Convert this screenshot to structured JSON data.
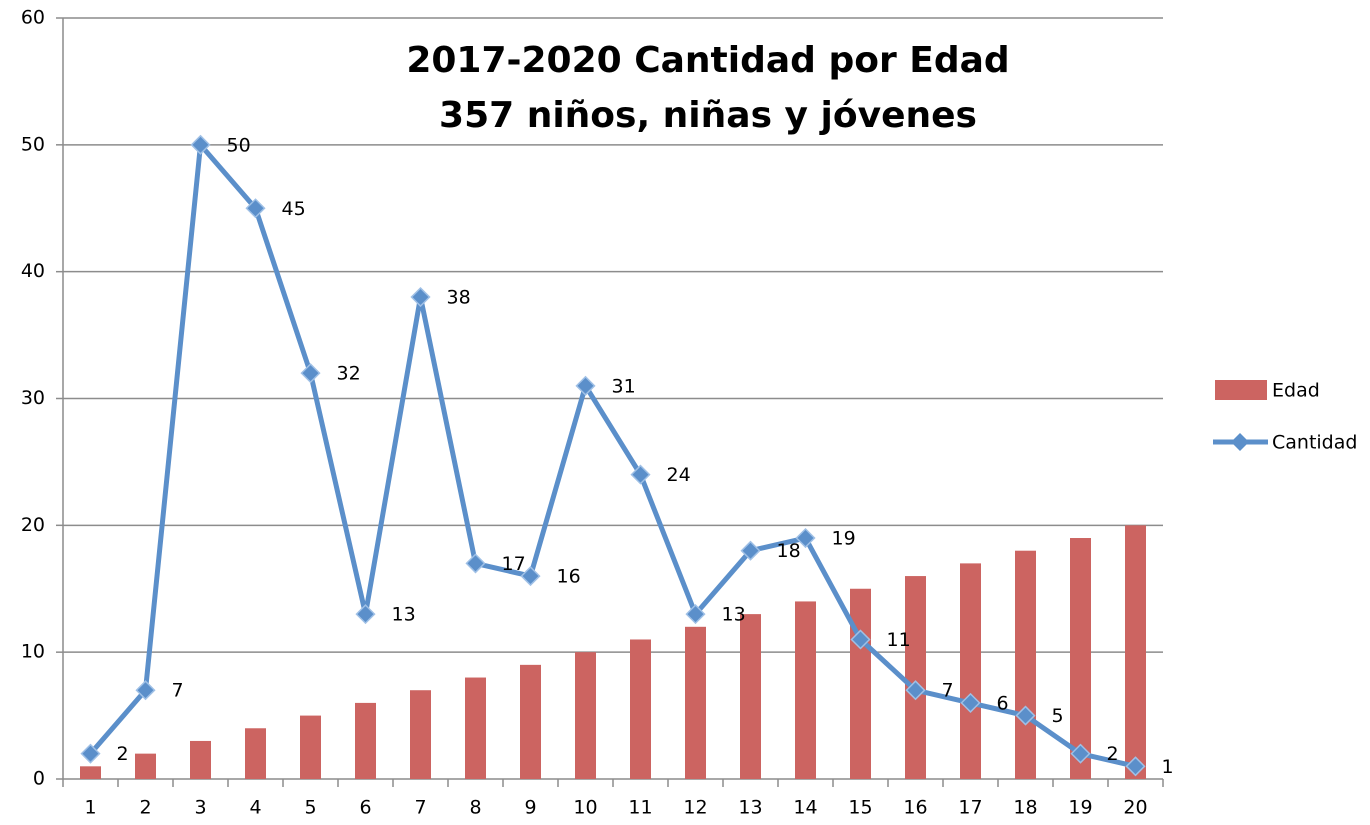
{
  "chart_data": {
    "type": "combo",
    "title": [
      "2017-2020  Cantidad por Edad",
      "357 niños, niñas y jóvenes"
    ],
    "categories": [
      1,
      2,
      3,
      4,
      5,
      6,
      7,
      8,
      9,
      10,
      11,
      12,
      13,
      14,
      15,
      16,
      17,
      18,
      19,
      20
    ],
    "series": [
      {
        "name": "Edad",
        "type": "bar",
        "color": "#cc6461",
        "values": [
          1,
          2,
          3,
          4,
          5,
          6,
          7,
          8,
          9,
          10,
          11,
          12,
          13,
          14,
          15,
          16,
          17,
          18,
          19,
          20
        ]
      },
      {
        "name": "Cantidad",
        "type": "line",
        "color": "#5b8fca",
        "values": [
          2,
          7,
          50,
          45,
          32,
          13,
          38,
          17,
          16,
          31,
          24,
          13,
          18,
          19,
          11,
          7,
          6,
          5,
          2,
          1
        ]
      }
    ],
    "ylim": [
      0,
      60
    ],
    "yticks": [
      0,
      10,
      20,
      30,
      40,
      50,
      60
    ],
    "grid": true,
    "legend": "right"
  }
}
